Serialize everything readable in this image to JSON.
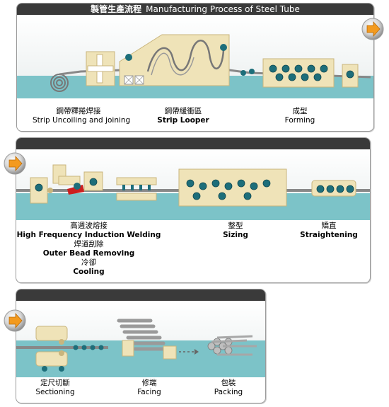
{
  "title": {
    "cn": "製管生產流程",
    "en": "Manufacturing Process of Steel Tube"
  },
  "panel1": {
    "steps": [
      {
        "cn": "鋼帶釋捲焊接",
        "en": "Strip Uncoiling and joining"
      },
      {
        "cn": "鋼帶緩衝區",
        "en": "Strip Looper"
      },
      {
        "cn": "成型",
        "en": "Forming"
      }
    ]
  },
  "panel2": {
    "steps": [
      {
        "cn1": "高週波熔接",
        "en1": "High Frequency Induction Welding",
        "cn2": "焊道刮除",
        "en2": "Outer Bead Removing",
        "cn3": "冷卻",
        "en3": "Cooling"
      },
      {
        "cn": "整型",
        "en": "Sizing"
      },
      {
        "cn": "矯直",
        "en": "Straightening"
      }
    ]
  },
  "panel3": {
    "steps": [
      {
        "cn": "定尺切斷",
        "en": "Sectioning"
      },
      {
        "cn": "修端",
        "en": "Facing"
      },
      {
        "cn": "包裝",
        "en": "Packing"
      }
    ]
  },
  "colors": {
    "water": "#7cc3c8",
    "sky": "#eef2f2",
    "machine": "#efe3b8",
    "machine_dark": "#c9b57d",
    "roller": "#1d6e7a",
    "header": "#3a3a3a",
    "accent": "#f39a1e"
  },
  "icons": [
    "next-arrow-icon"
  ]
}
